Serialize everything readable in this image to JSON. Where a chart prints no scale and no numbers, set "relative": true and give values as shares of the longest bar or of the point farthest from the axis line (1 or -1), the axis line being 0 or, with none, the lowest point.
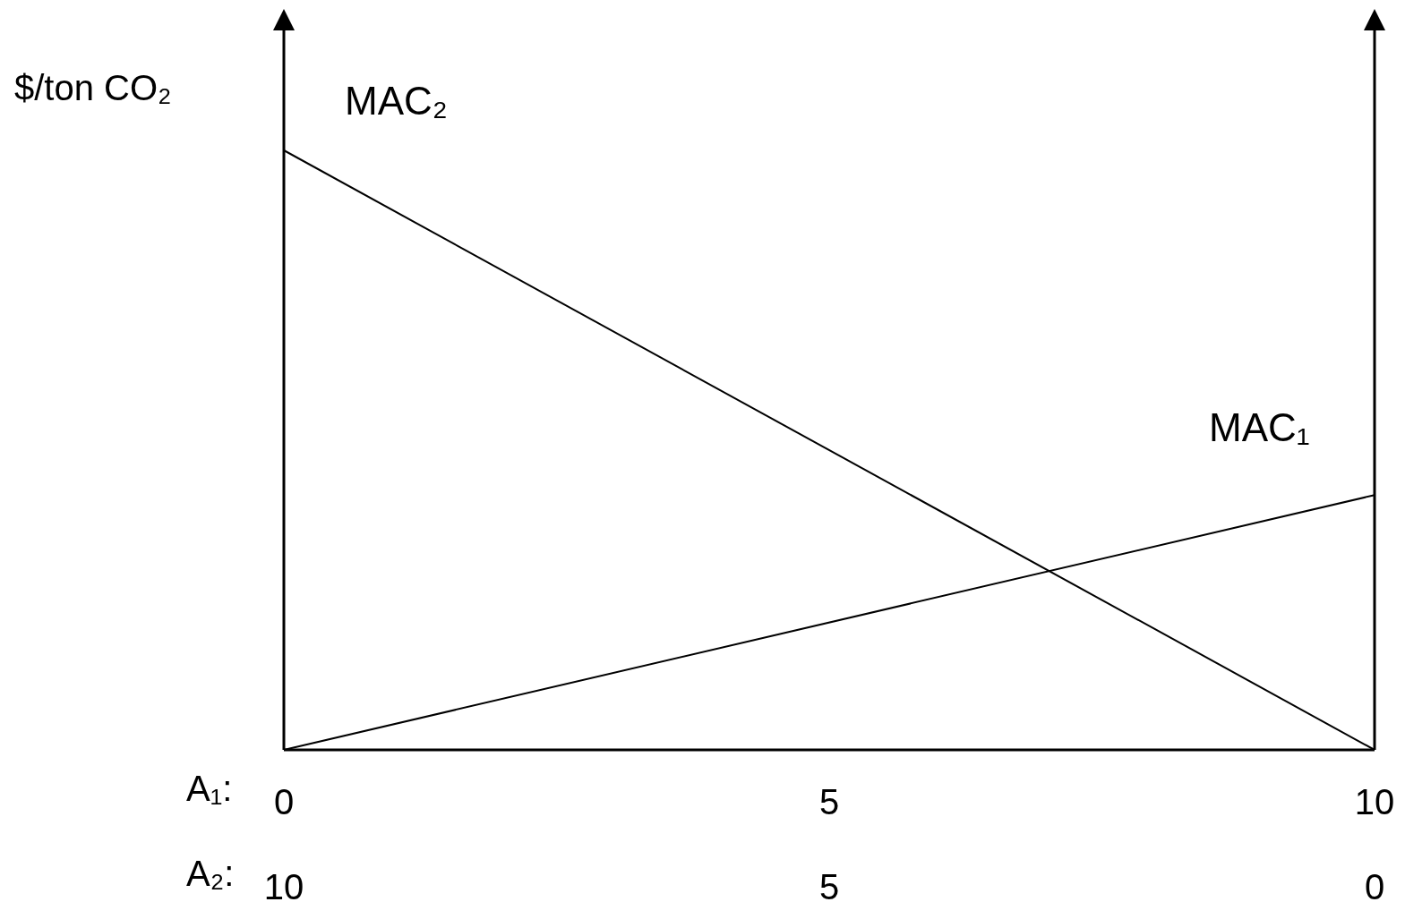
{
  "chart_data": {
    "type": "line",
    "ylabel": "$/ton CO₂",
    "xlabel": "A₁:",
    "x2label": "A₂:",
    "x": [
      0,
      10
    ],
    "xlim": [
      0,
      10
    ],
    "xticks": [
      0,
      5,
      10
    ],
    "x2lim": [
      10,
      0
    ],
    "x2ticks": [
      10,
      5,
      0
    ],
    "relative": true,
    "series": [
      {
        "name": "MAC₁",
        "color": "#000000",
        "values": [
          0,
          0.425
        ]
      },
      {
        "name": "MAC₂",
        "color": "#000000",
        "values": [
          1,
          0
        ]
      }
    ]
  }
}
